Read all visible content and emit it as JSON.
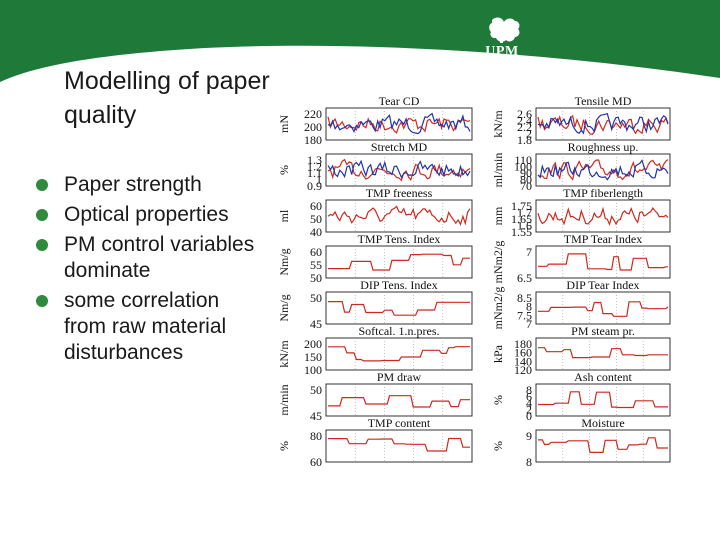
{
  "slide": {
    "title": "Modelling of paper quality",
    "bullets": [
      "Paper strength",
      "Optical properties",
      "PM control variables dominate",
      "some correlation from raw material disturbances"
    ],
    "logo_text": "UPM",
    "colors": {
      "header_green": "#1f7a3a",
      "bullet_dot": "#2f8a3e",
      "trace_red": "#cc2a1f",
      "trace_blue": "#2233aa"
    }
  },
  "panels": [
    {
      "label": "Tear CD",
      "unit": "mN",
      "ticks": [
        "220",
        "200",
        "180"
      ],
      "blue": true
    },
    {
      "label": "Tensile MD",
      "unit": "kN/m",
      "ticks": [
        "2.6",
        "2.4",
        "2.2",
        "2",
        "1.8"
      ],
      "blue": true
    },
    {
      "label": "Stretch MD",
      "unit": "%",
      "ticks": [
        "1.3",
        "1.2",
        "1.1",
        "1",
        "0.9"
      ],
      "blue": true
    },
    {
      "label": "Roughness up.",
      "unit": "ml/min",
      "ticks": [
        "110",
        "100",
        "90",
        "80",
        "70"
      ],
      "blue": true
    },
    {
      "label": "TMP freeness",
      "unit": "ml",
      "ticks": [
        "60",
        "50",
        "40"
      ]
    },
    {
      "label": "TMP fiberlength",
      "unit": "mm",
      "ticks": [
        "1.75",
        "1.7",
        "1.65",
        "1.6",
        "1.55"
      ]
    },
    {
      "label": "TMP Tens. Index",
      "unit": "Nm/g",
      "ticks": [
        "60",
        "55",
        "50"
      ]
    },
    {
      "label": "TMP Tear Index",
      "unit": "mNm2/g",
      "ticks": [
        "7",
        "6.5"
      ]
    },
    {
      "label": "DIP Tens. Index",
      "unit": "Nm/g",
      "ticks": [
        "50",
        "45"
      ]
    },
    {
      "label": "DIP Tear Index",
      "unit": "mNm2/g",
      "ticks": [
        "8.5",
        "8",
        "7.5",
        "7"
      ]
    },
    {
      "label": "Softcal. 1.n.pres.",
      "unit": "kN/m",
      "ticks": [
        "200",
        "150",
        "100"
      ]
    },
    {
      "label": "PM steam pr.",
      "unit": "kPa",
      "ticks": [
        "180",
        "160",
        "140",
        "120"
      ]
    },
    {
      "label": "PM draw",
      "unit": "m/min",
      "ticks": [
        "50",
        "45"
      ]
    },
    {
      "label": "Ash content",
      "unit": "%",
      "ticks": [
        "8",
        "6",
        "4",
        "2",
        "0"
      ]
    },
    {
      "label": "TMP content",
      "unit": "%",
      "ticks": [
        "80",
        "60"
      ]
    },
    {
      "label": "Moisture",
      "unit": "%",
      "ticks": [
        "9",
        "8"
      ]
    }
  ]
}
